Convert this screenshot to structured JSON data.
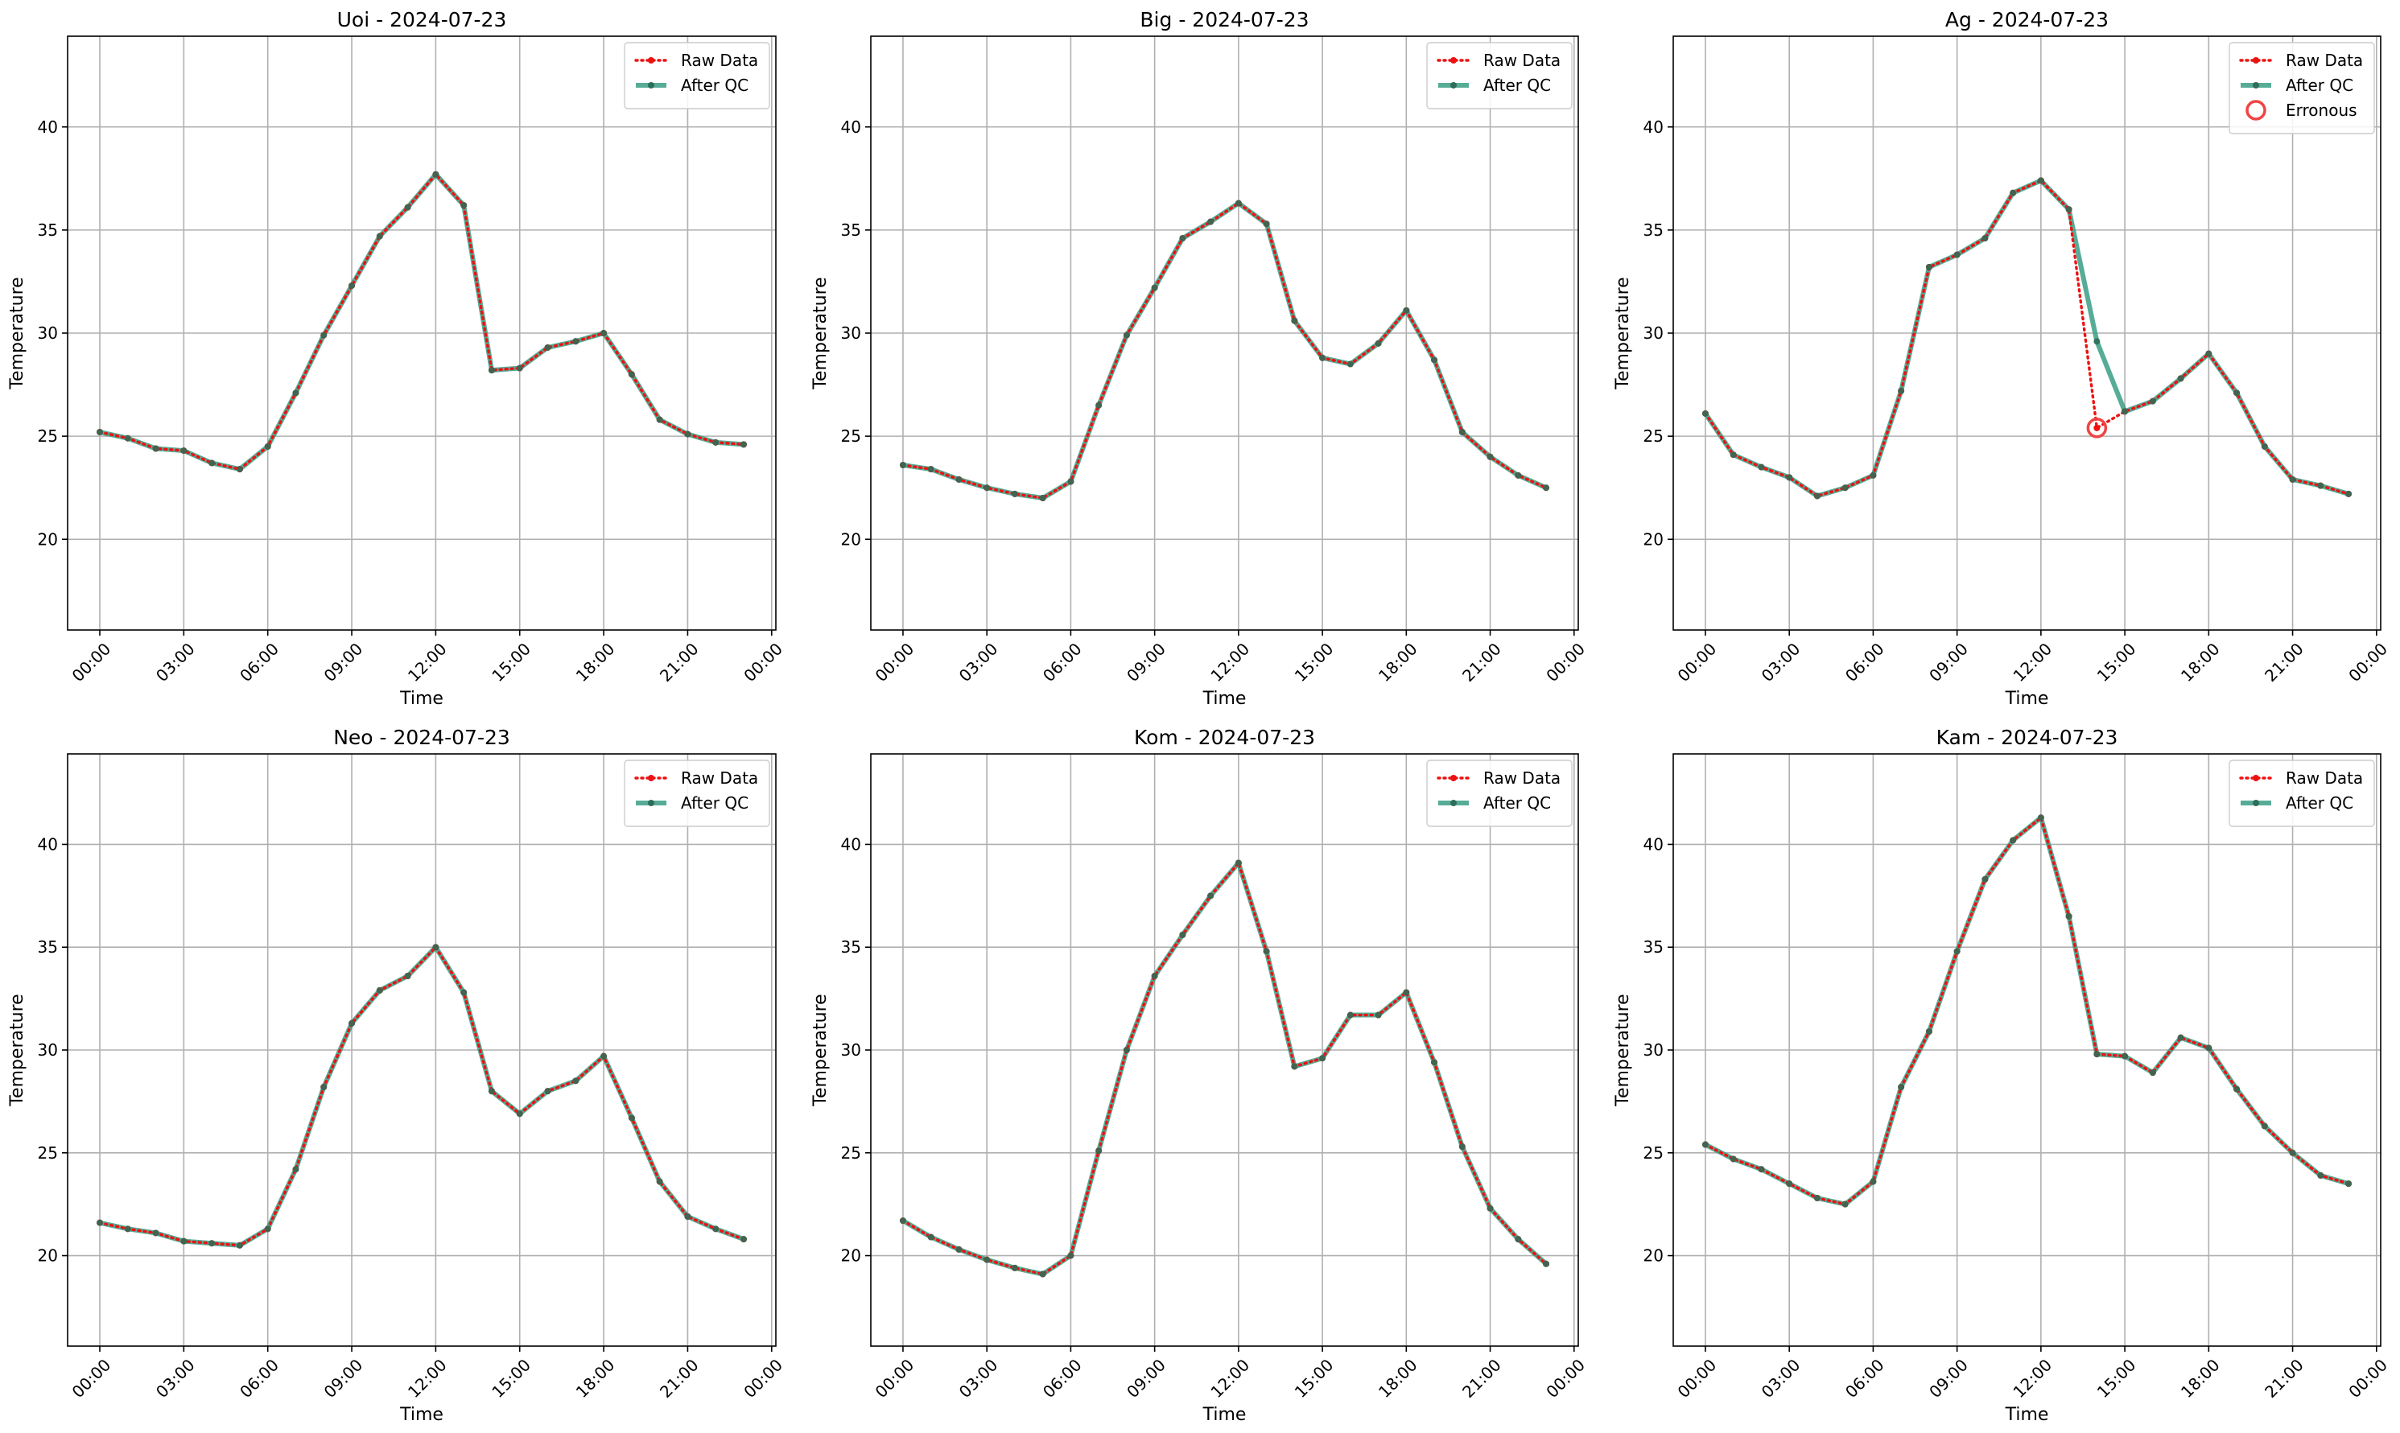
{
  "colors": {
    "raw": "#ee1111",
    "qc": "#3a9e85",
    "qc_marker": "#2f6e58",
    "erroneous": "#f04444"
  },
  "chart_data": [
    {
      "type": "line",
      "title": "Uoi - 2024-07-23",
      "xlabel": "Time",
      "ylabel": "Temperature",
      "xlim": [
        -1.15,
        24.15
      ],
      "ylim": [
        15.6,
        44.4
      ],
      "x_ticks": [
        0,
        3,
        6,
        9,
        12,
        15,
        18,
        21,
        24
      ],
      "x_tick_labels": [
        "00:00",
        "03:00",
        "06:00",
        "09:00",
        "12:00",
        "15:00",
        "18:00",
        "21:00",
        "00:00"
      ],
      "y_ticks": [
        20,
        25,
        30,
        35,
        40
      ],
      "y_tick_labels": [
        "20",
        "25",
        "30",
        "35",
        "40"
      ],
      "grid": true,
      "legend_position": "top-right",
      "legend": [
        "Raw Data",
        "After QC"
      ],
      "x": [
        0,
        1,
        2,
        3,
        4,
        5,
        6,
        7,
        8,
        9,
        10,
        11,
        12,
        13,
        14,
        15,
        16,
        17,
        18,
        19,
        20,
        21,
        22,
        23
      ],
      "series": [
        {
          "name": "Raw Data",
          "values": [
            25.2,
            24.9,
            24.4,
            24.3,
            23.7,
            23.4,
            24.5,
            27.1,
            29.9,
            32.3,
            34.7,
            36.1,
            37.7,
            36.2,
            28.2,
            28.3,
            29.3,
            29.6,
            30.0,
            28.0,
            25.8,
            25.1,
            24.7,
            24.6
          ]
        },
        {
          "name": "After QC",
          "values": [
            25.2,
            24.9,
            24.4,
            24.3,
            23.7,
            23.4,
            24.5,
            27.1,
            29.9,
            32.3,
            34.7,
            36.1,
            37.7,
            36.2,
            28.2,
            28.3,
            29.3,
            29.6,
            30.0,
            28.0,
            25.8,
            25.1,
            24.7,
            24.6
          ]
        }
      ]
    },
    {
      "type": "line",
      "title": "Big - 2024-07-23",
      "xlabel": "Time",
      "ylabel": "Temperature",
      "xlim": [
        -1.15,
        24.15
      ],
      "ylim": [
        15.6,
        44.4
      ],
      "x_ticks": [
        0,
        3,
        6,
        9,
        12,
        15,
        18,
        21,
        24
      ],
      "x_tick_labels": [
        "00:00",
        "03:00",
        "06:00",
        "09:00",
        "12:00",
        "15:00",
        "18:00",
        "21:00",
        "00:00"
      ],
      "y_ticks": [
        20,
        25,
        30,
        35,
        40
      ],
      "y_tick_labels": [
        "20",
        "25",
        "30",
        "35",
        "40"
      ],
      "grid": true,
      "legend_position": "top-right",
      "legend": [
        "Raw Data",
        "After QC"
      ],
      "x": [
        0,
        1,
        2,
        3,
        4,
        5,
        6,
        7,
        8,
        9,
        10,
        11,
        12,
        13,
        14,
        15,
        16,
        17,
        18,
        19,
        20,
        21,
        22,
        23
      ],
      "series": [
        {
          "name": "Raw Data",
          "values": [
            23.6,
            23.4,
            22.9,
            22.5,
            22.2,
            22.0,
            22.8,
            26.5,
            29.9,
            32.2,
            34.6,
            35.4,
            36.3,
            35.3,
            30.6,
            28.8,
            28.5,
            29.5,
            31.1,
            28.7,
            25.2,
            24.0,
            23.1,
            22.5
          ]
        },
        {
          "name": "After QC",
          "values": [
            23.6,
            23.4,
            22.9,
            22.5,
            22.2,
            22.0,
            22.8,
            26.5,
            29.9,
            32.2,
            34.6,
            35.4,
            36.3,
            35.3,
            30.6,
            28.8,
            28.5,
            29.5,
            31.1,
            28.7,
            25.2,
            24.0,
            23.1,
            22.5
          ]
        }
      ]
    },
    {
      "type": "line",
      "title": "Ag - 2024-07-23",
      "xlabel": "Time",
      "ylabel": "Temperature",
      "xlim": [
        -1.15,
        24.15
      ],
      "ylim": [
        15.6,
        44.4
      ],
      "x_ticks": [
        0,
        3,
        6,
        9,
        12,
        15,
        18,
        21,
        24
      ],
      "x_tick_labels": [
        "00:00",
        "03:00",
        "06:00",
        "09:00",
        "12:00",
        "15:00",
        "18:00",
        "21:00",
        "00:00"
      ],
      "y_ticks": [
        20,
        25,
        30,
        35,
        40
      ],
      "y_tick_labels": [
        "20",
        "25",
        "30",
        "35",
        "40"
      ],
      "grid": true,
      "legend_position": "top-right",
      "legend": [
        "Raw Data",
        "After QC",
        "Erronous"
      ],
      "x": [
        0,
        1,
        2,
        3,
        4,
        5,
        6,
        7,
        8,
        9,
        10,
        11,
        12,
        13,
        14,
        15,
        16,
        17,
        18,
        19,
        20,
        21,
        22,
        23
      ],
      "series": [
        {
          "name": "Raw Data",
          "values": [
            26.1,
            24.1,
            23.5,
            23.0,
            22.1,
            22.5,
            23.1,
            27.2,
            33.2,
            33.8,
            34.6,
            36.8,
            37.4,
            36.0,
            25.4,
            26.2,
            26.7,
            27.8,
            29.0,
            27.1,
            24.5,
            22.9,
            22.6,
            22.2
          ]
        },
        {
          "name": "After QC",
          "values": [
            26.1,
            24.1,
            23.5,
            23.0,
            22.1,
            22.5,
            23.1,
            27.2,
            33.2,
            33.8,
            34.6,
            36.8,
            37.4,
            36.0,
            29.6,
            26.2,
            26.7,
            27.8,
            29.0,
            27.1,
            24.5,
            22.9,
            22.6,
            22.2
          ]
        }
      ],
      "erroneous": [
        {
          "x": 14,
          "y": 25.4
        }
      ]
    },
    {
      "type": "line",
      "title": "Neo - 2024-07-23",
      "xlabel": "Time",
      "ylabel": "Temperature",
      "xlim": [
        -1.15,
        24.15
      ],
      "ylim": [
        15.6,
        44.4
      ],
      "x_ticks": [
        0,
        3,
        6,
        9,
        12,
        15,
        18,
        21,
        24
      ],
      "x_tick_labels": [
        "00:00",
        "03:00",
        "06:00",
        "09:00",
        "12:00",
        "15:00",
        "18:00",
        "21:00",
        "00:00"
      ],
      "y_ticks": [
        20,
        25,
        30,
        35,
        40
      ],
      "y_tick_labels": [
        "20",
        "25",
        "30",
        "35",
        "40"
      ],
      "grid": true,
      "legend_position": "top-right",
      "legend": [
        "Raw Data",
        "After QC"
      ],
      "x": [
        0,
        1,
        2,
        3,
        4,
        5,
        6,
        7,
        8,
        9,
        10,
        11,
        12,
        13,
        14,
        15,
        16,
        17,
        18,
        19,
        20,
        21,
        22,
        23
      ],
      "series": [
        {
          "name": "Raw Data",
          "values": [
            21.6,
            21.3,
            21.1,
            20.7,
            20.6,
            20.5,
            21.3,
            24.2,
            28.2,
            31.3,
            32.9,
            33.6,
            35.0,
            32.8,
            28.0,
            26.9,
            28.0,
            28.5,
            29.7,
            26.7,
            23.6,
            21.9,
            21.3,
            20.8
          ]
        },
        {
          "name": "After QC",
          "values": [
            21.6,
            21.3,
            21.1,
            20.7,
            20.6,
            20.5,
            21.3,
            24.2,
            28.2,
            31.3,
            32.9,
            33.6,
            35.0,
            32.8,
            28.0,
            26.9,
            28.0,
            28.5,
            29.7,
            26.7,
            23.6,
            21.9,
            21.3,
            20.8
          ]
        }
      ]
    },
    {
      "type": "line",
      "title": "Kom - 2024-07-23",
      "xlabel": "Time",
      "ylabel": "Temperature",
      "xlim": [
        -1.15,
        24.15
      ],
      "ylim": [
        15.6,
        44.4
      ],
      "x_ticks": [
        0,
        3,
        6,
        9,
        12,
        15,
        18,
        21,
        24
      ],
      "x_tick_labels": [
        "00:00",
        "03:00",
        "06:00",
        "09:00",
        "12:00",
        "15:00",
        "18:00",
        "21:00",
        "00:00"
      ],
      "y_ticks": [
        20,
        25,
        30,
        35,
        40
      ],
      "y_tick_labels": [
        "20",
        "25",
        "30",
        "35",
        "40"
      ],
      "grid": true,
      "legend_position": "top-right",
      "legend": [
        "Raw Data",
        "After QC"
      ],
      "x": [
        0,
        1,
        2,
        3,
        4,
        5,
        6,
        7,
        8,
        9,
        10,
        11,
        12,
        13,
        14,
        15,
        16,
        17,
        18,
        19,
        20,
        21,
        22,
        23
      ],
      "series": [
        {
          "name": "Raw Data",
          "values": [
            21.7,
            20.9,
            20.3,
            19.8,
            19.4,
            19.1,
            20.0,
            25.1,
            30.0,
            33.6,
            35.6,
            37.5,
            39.1,
            34.8,
            29.2,
            29.6,
            31.7,
            31.7,
            32.8,
            29.4,
            25.3,
            22.3,
            20.8,
            19.6
          ]
        },
        {
          "name": "After QC",
          "values": [
            21.7,
            20.9,
            20.3,
            19.8,
            19.4,
            19.1,
            20.0,
            25.1,
            30.0,
            33.6,
            35.6,
            37.5,
            39.1,
            34.8,
            29.2,
            29.6,
            31.7,
            31.7,
            32.8,
            29.4,
            25.3,
            22.3,
            20.8,
            19.6
          ]
        }
      ]
    },
    {
      "type": "line",
      "title": "Kam - 2024-07-23",
      "xlabel": "Time",
      "ylabel": "Temperature",
      "xlim": [
        -1.15,
        24.15
      ],
      "ylim": [
        15.6,
        44.4
      ],
      "x_ticks": [
        0,
        3,
        6,
        9,
        12,
        15,
        18,
        21,
        24
      ],
      "x_tick_labels": [
        "00:00",
        "03:00",
        "06:00",
        "09:00",
        "12:00",
        "15:00",
        "18:00",
        "21:00",
        "00:00"
      ],
      "y_ticks": [
        20,
        25,
        30,
        35,
        40
      ],
      "y_tick_labels": [
        "20",
        "25",
        "30",
        "35",
        "40"
      ],
      "grid": true,
      "legend_position": "top-right",
      "legend": [
        "Raw Data",
        "After QC"
      ],
      "x": [
        0,
        1,
        2,
        3,
        4,
        5,
        6,
        7,
        8,
        9,
        10,
        11,
        12,
        13,
        14,
        15,
        16,
        17,
        18,
        19,
        20,
        21,
        22,
        23
      ],
      "series": [
        {
          "name": "Raw Data",
          "values": [
            25.4,
            24.7,
            24.2,
            23.5,
            22.8,
            22.5,
            23.6,
            28.2,
            30.9,
            34.8,
            38.3,
            40.2,
            41.3,
            36.5,
            29.8,
            29.7,
            28.9,
            30.6,
            30.1,
            28.1,
            26.3,
            25.0,
            23.9,
            23.5
          ]
        },
        {
          "name": "After QC",
          "values": [
            25.4,
            24.7,
            24.2,
            23.5,
            22.8,
            22.5,
            23.6,
            28.2,
            30.9,
            34.8,
            38.3,
            40.2,
            41.3,
            36.5,
            29.8,
            29.7,
            28.9,
            30.6,
            30.1,
            28.1,
            26.3,
            25.0,
            23.9,
            23.5
          ]
        }
      ]
    }
  ]
}
